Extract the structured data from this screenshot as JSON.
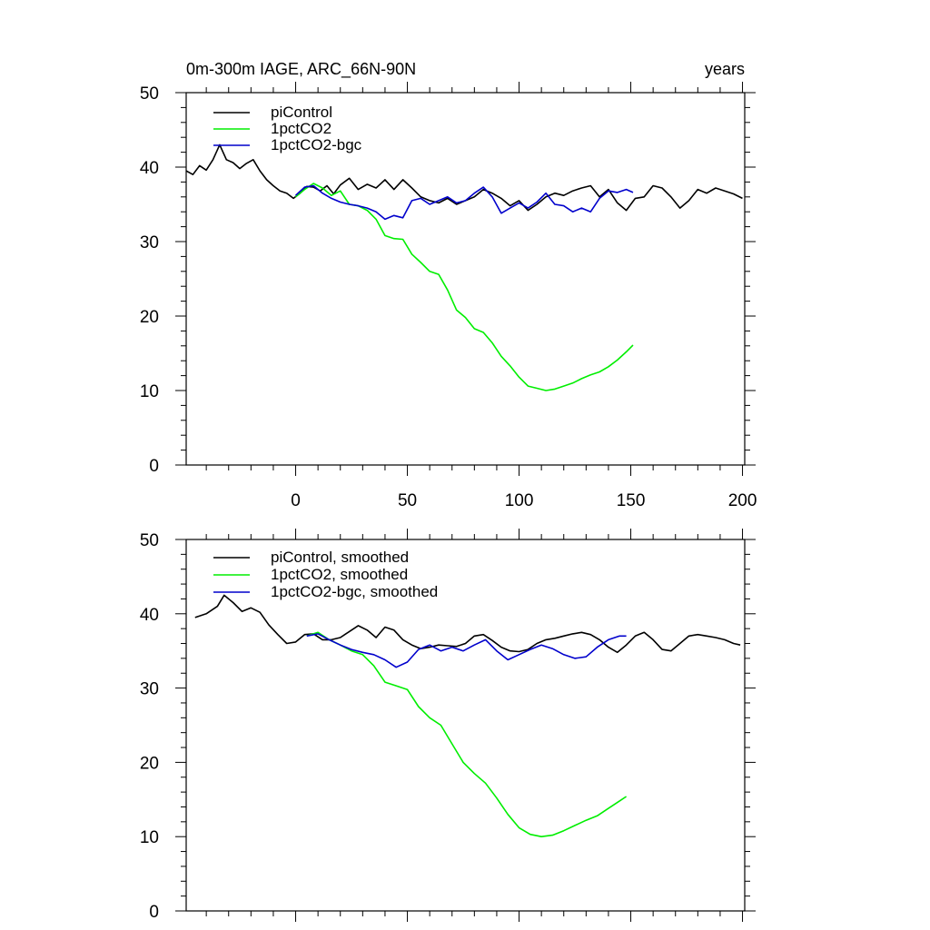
{
  "chart_data": [
    {
      "type": "line",
      "title": "0m-300m IAGE, ARC_66N-90N",
      "title_right": "years",
      "xlabel": "",
      "ylabel": "",
      "xlim": [
        -49,
        201
      ],
      "ylim": [
        0,
        50
      ],
      "x_ticks": [
        0,
        50,
        100,
        150,
        200
      ],
      "x_tick_labels": [
        "0",
        "50",
        "100",
        "150",
        "200"
      ],
      "y_ticks": [
        0,
        10,
        20,
        30,
        40,
        50
      ],
      "y_tick_labels": [
        "0",
        "10",
        "20",
        "30",
        "40",
        "50"
      ],
      "legend_position": "top-left",
      "series": [
        {
          "name": "piControl",
          "color": "#000000",
          "x": [
            -49,
            -46,
            -43,
            -40,
            -37,
            -34,
            -31,
            -28,
            -25,
            -22,
            -19,
            -16,
            -13,
            -10,
            -7,
            -4,
            -1,
            2,
            5,
            8,
            11,
            14,
            17,
            20,
            24,
            28,
            32,
            36,
            40,
            44,
            48,
            52,
            56,
            60,
            64,
            68,
            72,
            76,
            80,
            84,
            88,
            92,
            96,
            100,
            104,
            108,
            112,
            116,
            120,
            124,
            128,
            132,
            136,
            140,
            144,
            148,
            152,
            156,
            160,
            164,
            168,
            172,
            176,
            180,
            184,
            188,
            192,
            196,
            200
          ],
          "y": [
            39.5,
            39.0,
            40.2,
            39.6,
            41.0,
            43.0,
            41.0,
            40.6,
            39.8,
            40.5,
            41.0,
            39.5,
            38.3,
            37.5,
            36.8,
            36.5,
            35.8,
            36.5,
            37.4,
            37.3,
            36.8,
            37.5,
            36.4,
            37.6,
            38.5,
            37.0,
            37.7,
            37.2,
            38.3,
            37.0,
            38.3,
            37.2,
            36.0,
            35.5,
            35.2,
            35.8,
            35.0,
            35.5,
            36.0,
            37.0,
            36.5,
            35.8,
            34.8,
            35.5,
            34.2,
            35.0,
            36.0,
            36.5,
            36.2,
            36.8,
            37.2,
            37.5,
            36.0,
            37.0,
            35.2,
            34.2,
            35.8,
            36.0,
            37.5,
            37.2,
            36.0,
            34.5,
            35.5,
            37.0,
            36.5,
            37.2,
            36.8,
            36.4,
            35.8
          ]
        },
        {
          "name": "1pctCO2",
          "color": "#00ee00",
          "x": [
            0,
            4,
            8,
            12,
            16,
            20,
            24,
            28,
            32,
            36,
            40,
            44,
            48,
            52,
            56,
            60,
            64,
            68,
            72,
            76,
            80,
            84,
            88,
            92,
            96,
            100,
            104,
            108,
            112,
            116,
            120,
            124,
            128,
            132,
            136,
            140,
            144,
            148,
            151
          ],
          "y": [
            36.0,
            37.0,
            37.8,
            37.2,
            36.2,
            36.8,
            35.0,
            34.8,
            34.2,
            33.0,
            30.8,
            30.4,
            30.3,
            28.3,
            27.2,
            26.0,
            25.6,
            23.5,
            20.8,
            19.8,
            18.3,
            17.8,
            16.4,
            14.6,
            13.3,
            11.8,
            10.6,
            10.3,
            10.0,
            10.2,
            10.6,
            11.0,
            11.6,
            12.1,
            12.5,
            13.2,
            14.1,
            15.2,
            16.1
          ]
        },
        {
          "name": "1pctCO2-bgc",
          "color": "#0000cc",
          "x": [
            0,
            4,
            8,
            12,
            16,
            20,
            24,
            28,
            32,
            36,
            40,
            44,
            48,
            52,
            56,
            60,
            64,
            68,
            72,
            76,
            80,
            84,
            88,
            92,
            96,
            100,
            104,
            108,
            112,
            116,
            120,
            124,
            128,
            132,
            136,
            140,
            144,
            148,
            151
          ],
          "y": [
            36.2,
            37.3,
            37.5,
            36.5,
            35.8,
            35.3,
            35.0,
            34.8,
            34.5,
            34.0,
            33.0,
            33.5,
            33.2,
            35.5,
            35.8,
            35.0,
            35.5,
            36.0,
            35.2,
            35.5,
            36.5,
            37.3,
            36.0,
            33.8,
            34.5,
            35.2,
            34.5,
            35.3,
            36.5,
            35.0,
            34.8,
            34.0,
            34.5,
            34.0,
            35.8,
            36.8,
            36.6,
            37.0,
            36.6
          ]
        }
      ]
    },
    {
      "type": "line",
      "title": "",
      "xlabel": "",
      "ylabel": "",
      "xlim": [
        -49,
        201
      ],
      "ylim": [
        0,
        50
      ],
      "x_ticks": [
        0,
        50,
        100,
        150,
        200
      ],
      "y_ticks": [
        0,
        10,
        20,
        30,
        40,
        50
      ],
      "y_tick_labels": [
        "0",
        "10",
        "20",
        "30",
        "40",
        "50"
      ],
      "legend_position": "top-left",
      "series": [
        {
          "name": "piControl, smoothed",
          "color": "#000000",
          "x": [
            -45,
            -40,
            -35,
            -32,
            -28,
            -24,
            -20,
            -16,
            -12,
            -8,
            -4,
            0,
            4,
            8,
            12,
            16,
            20,
            24,
            28,
            32,
            36,
            40,
            44,
            48,
            52,
            56,
            60,
            64,
            68,
            72,
            76,
            80,
            84,
            88,
            92,
            96,
            100,
            104,
            108,
            112,
            116,
            120,
            124,
            128,
            132,
            136,
            140,
            144,
            148,
            152,
            156,
            160,
            164,
            168,
            172,
            176,
            180,
            184,
            188,
            192,
            196,
            199
          ],
          "y": [
            39.5,
            40.0,
            41.0,
            42.5,
            41.5,
            40.3,
            40.8,
            40.2,
            38.5,
            37.2,
            36.0,
            36.2,
            37.2,
            37.3,
            36.5,
            36.5,
            36.8,
            37.6,
            38.4,
            37.8,
            36.8,
            38.2,
            37.8,
            36.5,
            35.8,
            35.3,
            35.5,
            35.8,
            35.7,
            35.6,
            36.0,
            37.0,
            37.2,
            36.4,
            35.5,
            35.0,
            34.9,
            35.2,
            36.0,
            36.5,
            36.7,
            37.0,
            37.3,
            37.5,
            37.2,
            36.5,
            35.5,
            34.8,
            35.8,
            37.0,
            37.5,
            36.5,
            35.2,
            35.0,
            36.0,
            37.0,
            37.2,
            37.0,
            36.8,
            36.5,
            36.0,
            35.8
          ]
        },
        {
          "name": "1pctCO2, smoothed",
          "color": "#00ee00",
          "x": [
            5,
            10,
            15,
            20,
            25,
            30,
            35,
            40,
            45,
            50,
            55,
            60,
            65,
            70,
            75,
            80,
            85,
            90,
            95,
            100,
            105,
            110,
            115,
            120,
            125,
            130,
            135,
            140,
            145,
            148
          ],
          "y": [
            37.0,
            37.5,
            36.5,
            35.8,
            35.0,
            34.5,
            33.0,
            30.8,
            30.3,
            29.8,
            27.5,
            26.0,
            25.0,
            22.5,
            20.0,
            18.5,
            17.2,
            15.2,
            13.0,
            11.2,
            10.3,
            10.0,
            10.2,
            10.8,
            11.5,
            12.2,
            12.8,
            13.8,
            14.8,
            15.4
          ]
        },
        {
          "name": "1pctCO2-bgc, smoothed",
          "color": "#0000cc",
          "x": [
            5,
            10,
            15,
            20,
            25,
            30,
            35,
            40,
            45,
            50,
            55,
            60,
            65,
            70,
            75,
            80,
            85,
            90,
            95,
            100,
            105,
            110,
            115,
            120,
            125,
            130,
            135,
            140,
            145,
            148
          ],
          "y": [
            37.0,
            37.3,
            36.5,
            35.8,
            35.2,
            34.8,
            34.5,
            33.8,
            32.8,
            33.5,
            35.2,
            35.8,
            35.0,
            35.5,
            35.0,
            35.8,
            36.5,
            35.0,
            33.8,
            34.5,
            35.2,
            35.8,
            35.3,
            34.5,
            34.0,
            34.2,
            35.5,
            36.5,
            37.0,
            37.0
          ]
        }
      ]
    }
  ]
}
